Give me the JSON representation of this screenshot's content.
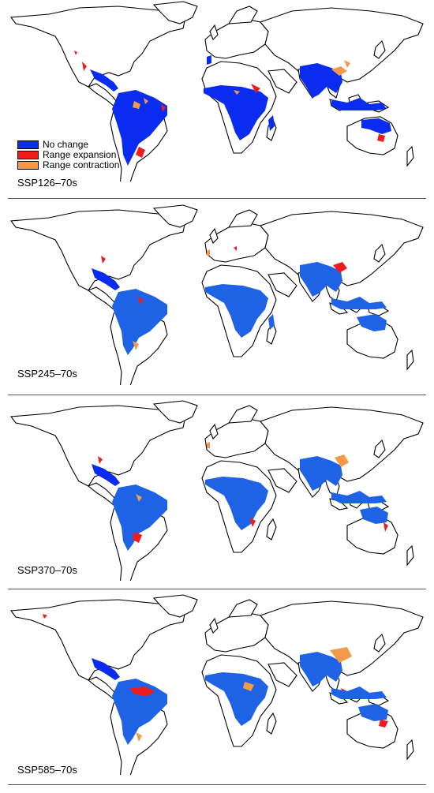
{
  "legend": {
    "items": [
      {
        "label": "No change",
        "color": "#0a2cf0"
      },
      {
        "label": "Range expansion",
        "color": "#ee1c1c"
      },
      {
        "label": "Range contraction",
        "color": "#f29a4a"
      }
    ]
  },
  "colors": {
    "no_change": "#0a2cf0",
    "no_change_light": "#1e63e6",
    "expansion": "#ee1c1c",
    "contraction": "#f29a4a",
    "land_outline": "#000000"
  },
  "panels": [
    {
      "scenario": "SSP126–70s"
    },
    {
      "scenario": "SSP245–70s"
    },
    {
      "scenario": "SSP370–70s"
    },
    {
      "scenario": "SSP585–70s"
    }
  ]
}
